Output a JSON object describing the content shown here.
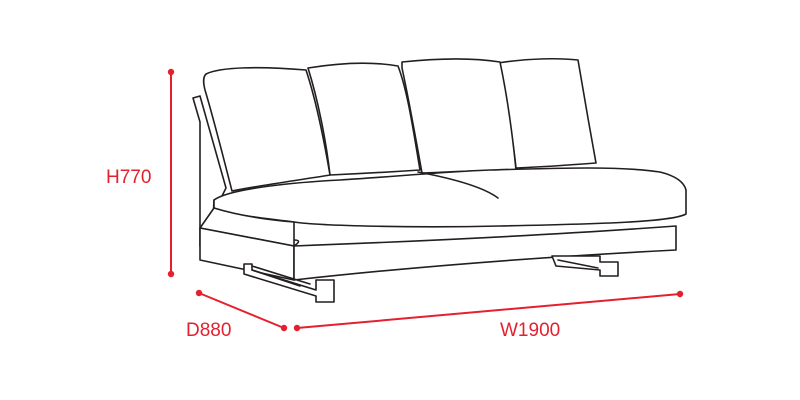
{
  "dimensions": {
    "height": {
      "label": "H770",
      "value": 770
    },
    "depth": {
      "label": "D880",
      "value": 880
    },
    "width": {
      "label": "W1900",
      "value": 1900
    }
  },
  "colors": {
    "dimension": "#e5202e",
    "outline": "#231f20",
    "background": "#ffffff"
  }
}
